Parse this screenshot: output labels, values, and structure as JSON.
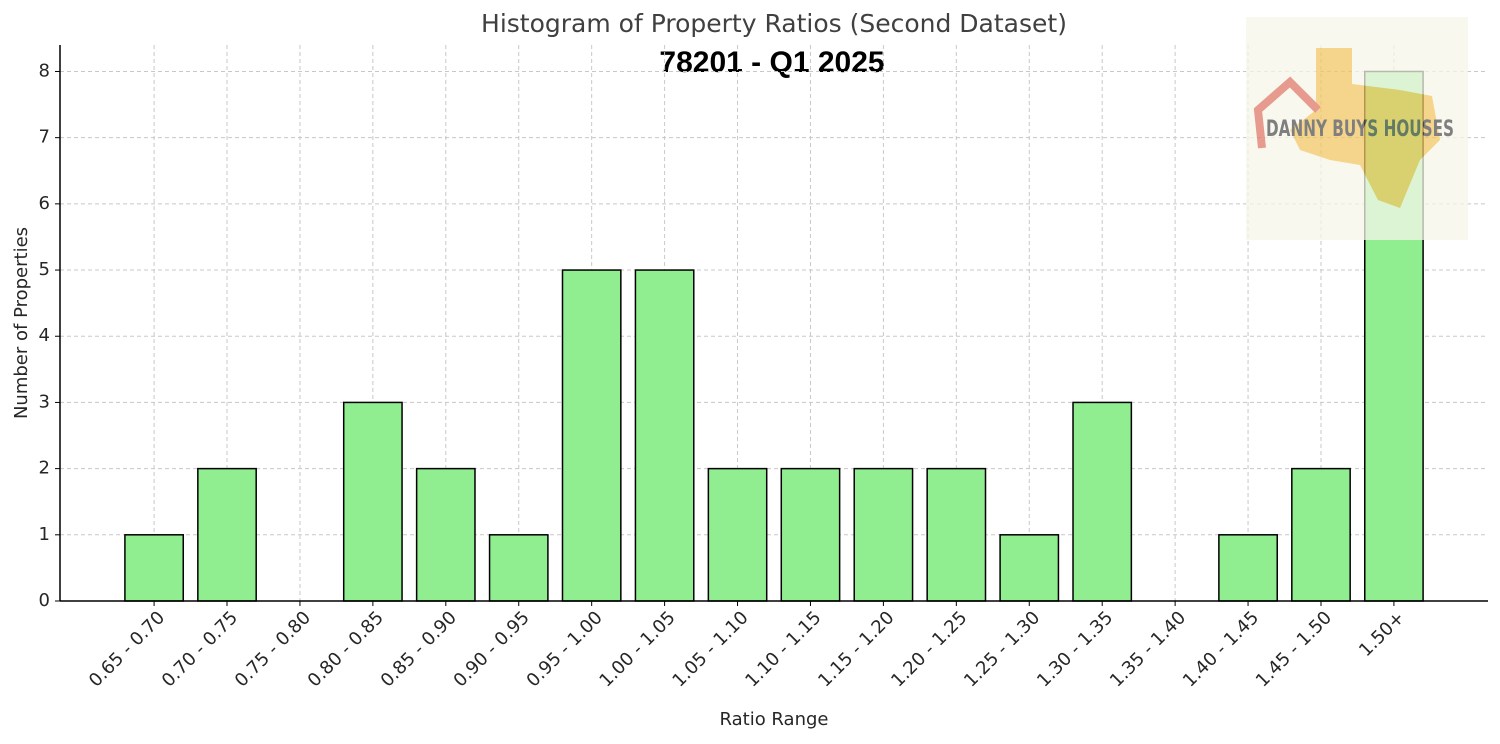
{
  "chart_data": {
    "type": "bar",
    "title": "Histogram of Property Ratios (Second Dataset)",
    "subtitle": "78201 - Q1 2025",
    "x_label": "Ratio Range",
    "y_label": "Number of Properties",
    "annotations": [
      "DANNY BUYS HOUSES"
    ],
    "categories": [
      "0.65 - 0.70",
      "0.70 - 0.75",
      "0.75 - 0.80",
      "0.80 - 0.85",
      "0.85 - 0.90",
      "0.90 - 0.95",
      "0.95 - 1.00",
      "1.00 - 1.05",
      "1.05 - 1.10",
      "1.10 - 1.15",
      "1.15 - 1.20",
      "1.20 - 1.25",
      "1.25 - 1.30",
      "1.30 - 1.35",
      "1.35 - 1.40",
      "1.40 - 1.45",
      "1.45 - 1.50",
      "1.50+"
    ],
    "values": [
      1,
      2,
      0,
      3,
      2,
      1,
      5,
      5,
      2,
      2,
      2,
      2,
      1,
      3,
      0,
      1,
      2,
      8
    ],
    "color": "#90ee90",
    "ylim": [
      0,
      8.4
    ],
    "yticks": [
      0,
      1,
      2,
      3,
      4,
      5,
      6,
      7,
      8
    ],
    "grid": true
  }
}
